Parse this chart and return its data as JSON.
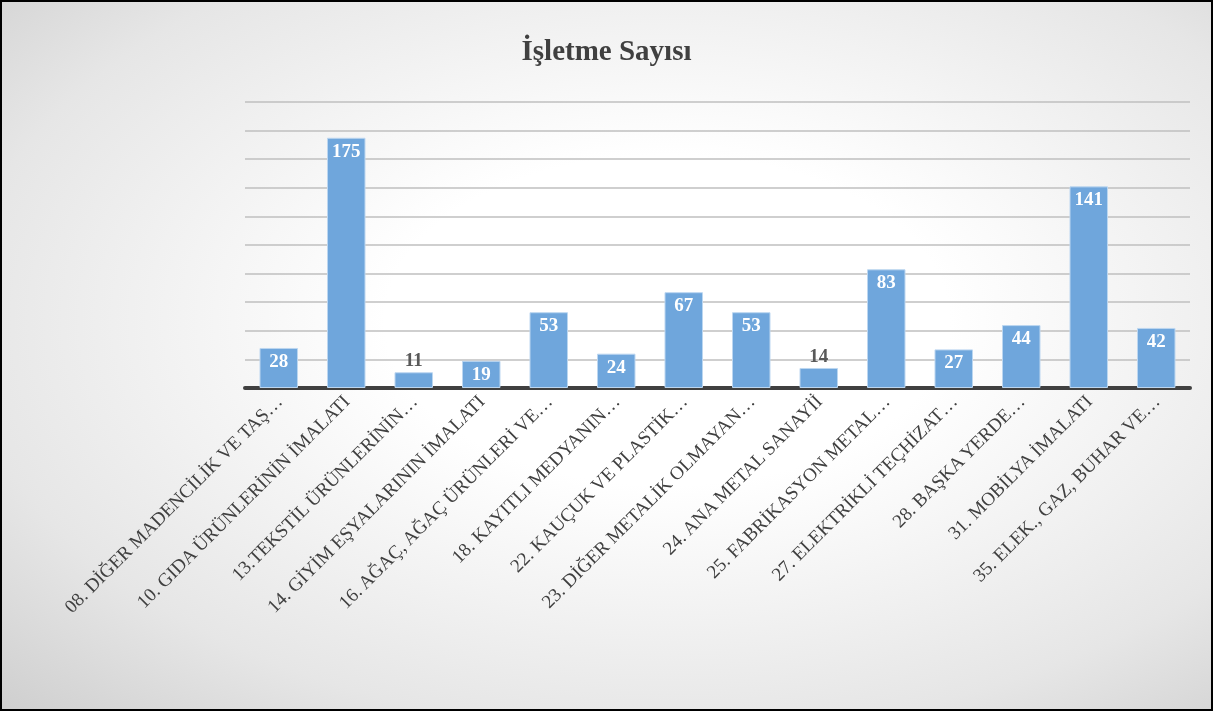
{
  "chart_data": {
    "type": "bar",
    "title": "İşletme Sayısı",
    "categories": [
      "08. DİĞER MADENCİLİK VE TAŞ…",
      "10. GIDA ÜRÜNLERİNİN İMALATI",
      "13.TEKSTİL ÜRÜNLERİNİN…",
      "14. GİYİM EŞYALARININ İMALATI",
      "16. AĞAÇ, AĞAÇ ÜRÜNLERİ VE…",
      "18. KAYITLI MEDYANIN…",
      "22. KAUÇUK VE PLASTİK…",
      "23. DİĞER METALİK OLMAYAN…",
      "24. ANA METAL SANAYİİ",
      "25. FABRİKASYON METAL…",
      "27. ELEKTRİKLİ TEÇHİZAT…",
      "28. BAŞKA YERDE…",
      "31. MOBİLYA İMALATI",
      "35. ELEK., GAZ, BUHAR VE…"
    ],
    "values": [
      28,
      175,
      11,
      19,
      53,
      24,
      67,
      53,
      14,
      83,
      27,
      44,
      141,
      42
    ],
    "color": "#6fa6dc",
    "ylim": [
      0,
      200
    ],
    "yticks": [
      {
        "value": 0,
        "label": null
      },
      {
        "value": 20,
        "label": null
      },
      {
        "value": 40,
        "label": null
      },
      {
        "value": 60,
        "label": null
      },
      {
        "value": 80,
        "label": null
      },
      {
        "value": 100,
        "label": null
      },
      {
        "value": 120,
        "label": null
      },
      {
        "value": 140,
        "label": null
      },
      {
        "value": 160,
        "label": null
      },
      {
        "value": 180,
        "label": null
      },
      {
        "value": 200,
        "label": null
      }
    ],
    "tick_labels": "x",
    "grid": "y",
    "data_labels": true
  }
}
